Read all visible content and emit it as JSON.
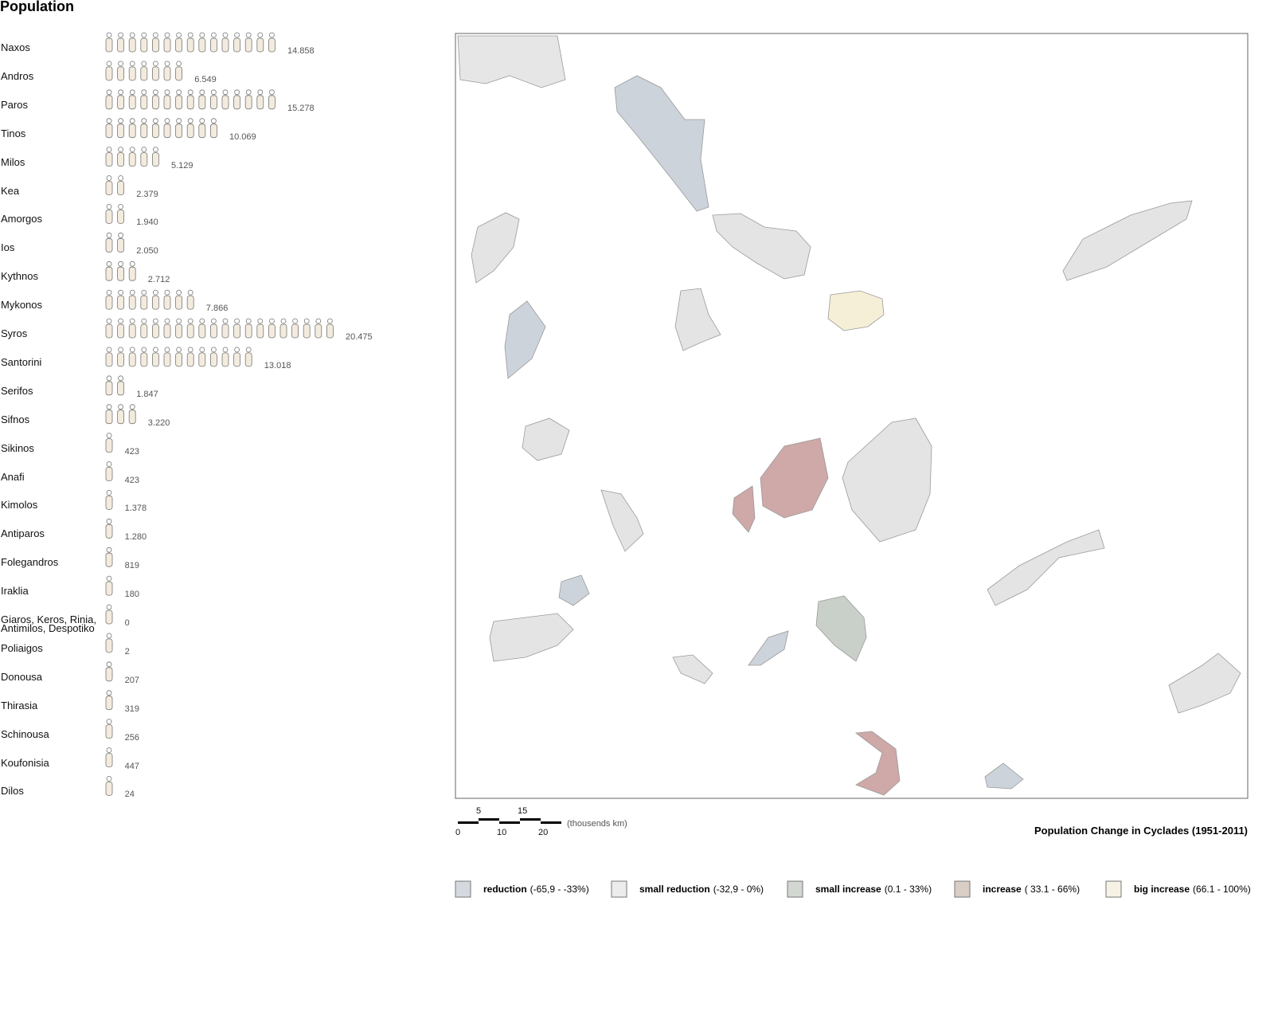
{
  "title": "Population",
  "islands": [
    {
      "name": "Naxos",
      "population": 14858,
      "label": "14.858"
    },
    {
      "name": "Andros",
      "population": 6549,
      "label": "6.549"
    },
    {
      "name": "Paros",
      "population": 15278,
      "label": "15.278"
    },
    {
      "name": "Tinos",
      "population": 10069,
      "label": "10.069"
    },
    {
      "name": "Milos",
      "population": 5129,
      "label": "5.129"
    },
    {
      "name": "Kea",
      "population": 2379,
      "label": "2.379"
    },
    {
      "name": "Amorgos",
      "population": 1940,
      "label": "1.940"
    },
    {
      "name": "Ios",
      "population": 2050,
      "label": "2.050"
    },
    {
      "name": "Kythnos",
      "population": 2712,
      "label": "2.712"
    },
    {
      "name": "Mykonos",
      "population": 7866,
      "label": "7.866"
    },
    {
      "name": "Syros",
      "population": 20475,
      "label": "20.475"
    },
    {
      "name": "Santorini",
      "population": 13018,
      "label": "13.018"
    },
    {
      "name": "Serifos",
      "population": 1847,
      "label": "1.847"
    },
    {
      "name": "Sifnos",
      "population": 3220,
      "label": "3.220"
    },
    {
      "name": "Sikinos",
      "population": 423
    },
    {
      "name": "Anafi",
      "population": 423
    },
    {
      "name": "Kimolos",
      "population": 1378,
      "label": "1.378"
    },
    {
      "name": "Antiparos",
      "population": 1280,
      "label": "1.280"
    },
    {
      "name": "Folegandros",
      "population": 819
    },
    {
      "name": "Iraklia",
      "population": 180
    },
    {
      "name": "Giaros, Keros, Rinia, Antimilos, Despotiko",
      "population": 0
    },
    {
      "name": "Poliaigos",
      "population": 2
    },
    {
      "name": "Donousa",
      "population": 207
    },
    {
      "name": "Thirasia",
      "population": 319
    },
    {
      "name": "Schinousa",
      "population": 256
    },
    {
      "name": "Koufonisia",
      "population": 447
    },
    {
      "name": "Dilos",
      "population": 24
    }
  ],
  "map": {
    "title": "Population Change in Cyclades (1951-2011)",
    "scale": {
      "ticks": [
        0,
        5,
        10,
        15,
        20
      ],
      "unit": "(thousends km)"
    },
    "legend": [
      {
        "name": "reduction",
        "range": "(-65,9 - -33%)",
        "color": "#d3d9df"
      },
      {
        "name": "small reduction",
        "range": "(-32,9 - 0%)",
        "color": "#ececec"
      },
      {
        "name": "small increase",
        "range": "(0.1 - 33%)",
        "color": "#d2d7d2"
      },
      {
        "name": "increase",
        "range": "( 33.1 - 66%)",
        "color": "#d8cec6"
      },
      {
        "name": "big increase",
        "range": "(66.1 - 100%)",
        "color": "#f6f2e6"
      }
    ]
  }
}
